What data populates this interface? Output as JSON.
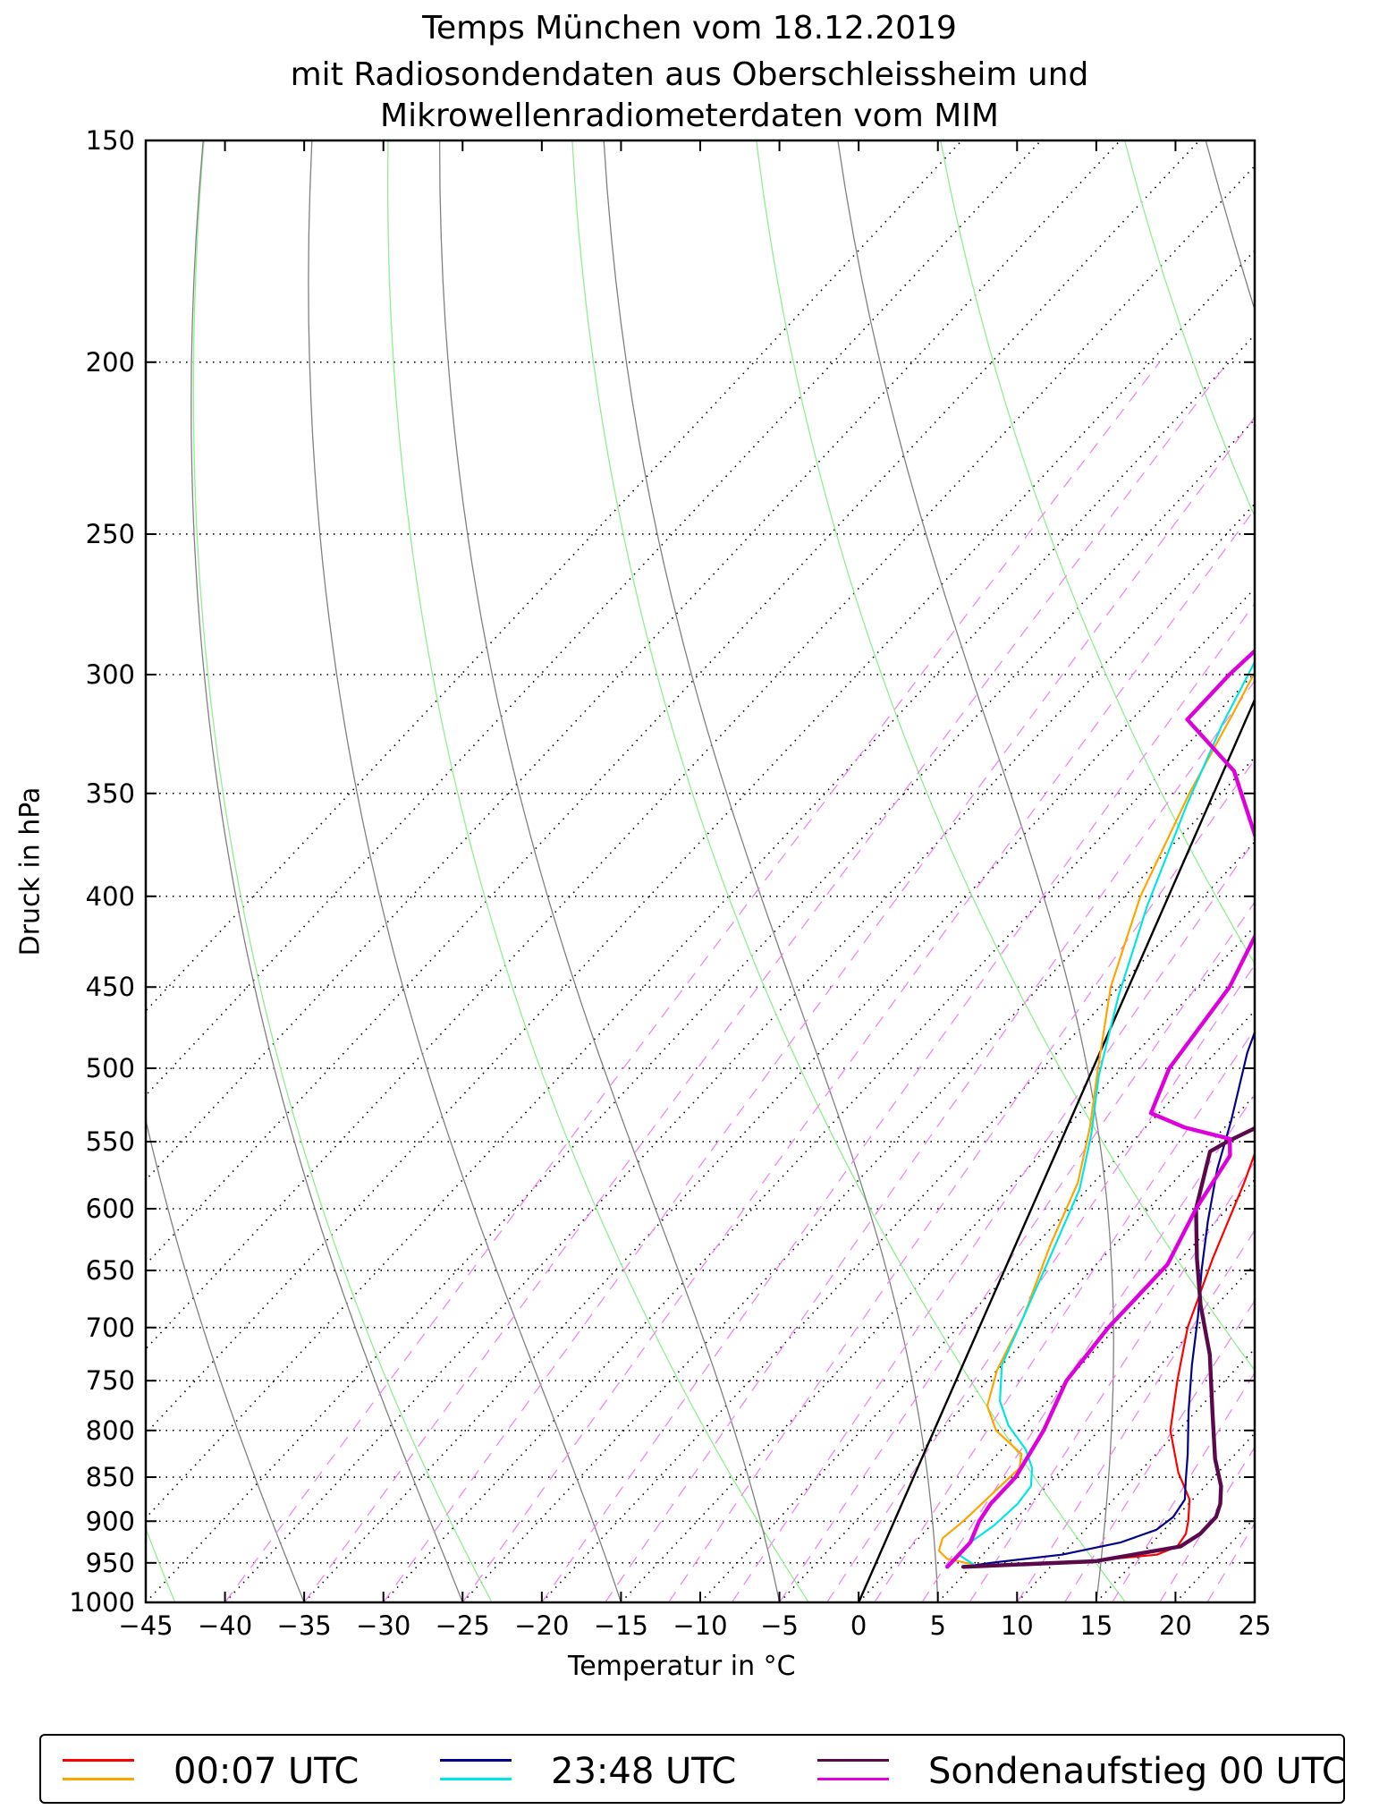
{
  "chart_data": {
    "type": "line",
    "subtype": "skew-T log-p diagram",
    "title_lines": [
      "Temps München vom 18.12.2019",
      "mit Radiosondendaten aus Oberschleissheim und",
      "Mikrowellenradiometerdaten vom MIM"
    ],
    "xlabel": "Temperatur in °C",
    "ylabel": "Druck in hPa",
    "xlim": [
      -45,
      25
    ],
    "ylim": [
      1000,
      150
    ],
    "yscale": "log",
    "skew_degC_per_decade": 105,
    "x_ticks": [
      "−45",
      "−40",
      "−35",
      "−30",
      "−25",
      "−20",
      "−15",
      "−10",
      "−5",
      "0",
      "5",
      "10",
      "15",
      "20",
      "25"
    ],
    "x_tick_values": [
      -45,
      -40,
      -35,
      -30,
      -25,
      -20,
      -15,
      -10,
      -5,
      0,
      5,
      10,
      15,
      20,
      25
    ],
    "y_ticks": [
      "150",
      "200",
      "250",
      "300",
      "350",
      "400",
      "450",
      "500",
      "550",
      "600",
      "650",
      "700",
      "750",
      "800",
      "850",
      "900",
      "950",
      "1000"
    ],
    "y_tick_values": [
      150,
      200,
      250,
      300,
      350,
      400,
      450,
      500,
      550,
      600,
      650,
      700,
      750,
      800,
      850,
      900,
      950,
      1000
    ],
    "isotherm_start_values_degC": [
      -80,
      -75,
      -70,
      -65,
      -60,
      -55,
      -50,
      -45,
      -40,
      -35,
      -30,
      -25,
      -20,
      -15,
      -10,
      -5,
      0,
      5,
      10,
      15,
      20,
      25
    ],
    "dry_adiabat_theta_K": [
      230,
      250,
      270,
      290,
      310,
      330,
      350,
      370,
      390,
      410,
      430,
      450,
      470,
      490,
      510
    ],
    "moist_adiabat_T1000_degC": [
      -35,
      -25,
      -15,
      -5,
      5,
      15,
      25
    ],
    "mixing_ratio_start_degC": [
      -40,
      -35,
      -30,
      -25,
      -20,
      -16,
      -12,
      -8,
      -5,
      -2,
      1,
      4,
      7,
      10,
      13,
      16,
      19,
      22,
      25
    ],
    "reference_line": {
      "name": "0°C reference",
      "start": [
        0,
        1000
      ],
      "end": [
        25,
        310
      ]
    },
    "series": [
      {
        "name": "00:07 UTC Temperatur",
        "color": "#ff0000",
        "width": 2,
        "points": [
          [
            -26.0,
            245
          ],
          [
            -25.5,
            260
          ],
          [
            -24.0,
            280
          ],
          [
            -21.5,
            305
          ],
          [
            -18.0,
            335
          ],
          [
            -15.0,
            365
          ],
          [
            -12.0,
            400
          ],
          [
            -8.0,
            450
          ],
          [
            -5.0,
            500
          ],
          [
            -2.5,
            540
          ],
          [
            -0.5,
            580
          ],
          [
            2.0,
            640
          ],
          [
            4.5,
            700
          ],
          [
            7.0,
            750
          ],
          [
            9.5,
            800
          ],
          [
            12.5,
            845
          ],
          [
            14.8,
            875
          ],
          [
            16.0,
            900
          ],
          [
            16.6,
            915
          ],
          [
            16.8,
            930
          ],
          [
            16.0,
            940
          ],
          [
            12.0,
            948
          ],
          [
            8.0,
            952
          ],
          [
            4.5,
            955
          ]
        ]
      },
      {
        "name": "00:07 UTC Taupunkt",
        "color": "#ffa500",
        "width": 2,
        "points": [
          [
            -33.5,
            242
          ],
          [
            -33.0,
            255
          ],
          [
            -31.0,
            285
          ],
          [
            -29.0,
            315
          ],
          [
            -27.0,
            350
          ],
          [
            -24.0,
            400
          ],
          [
            -20.5,
            450
          ],
          [
            -16.5,
            500
          ],
          [
            -13.5,
            540
          ],
          [
            -11.0,
            580
          ],
          [
            -9.0,
            630
          ],
          [
            -6.5,
            690
          ],
          [
            -5.0,
            740
          ],
          [
            -3.5,
            775
          ],
          [
            -1.5,
            800
          ],
          [
            1.5,
            825
          ],
          [
            2.2,
            840
          ],
          [
            2.0,
            870
          ],
          [
            1.8,
            900
          ],
          [
            1.5,
            920
          ],
          [
            2.0,
            935
          ],
          [
            3.0,
            945
          ],
          [
            5.0,
            952
          ]
        ]
      },
      {
        "name": "23:48 UTC Temperatur",
        "color": "#00008b",
        "width": 2,
        "points": [
          [
            -26.5,
            242
          ],
          [
            -25.0,
            262
          ],
          [
            -22.5,
            295
          ],
          [
            -20.0,
            325
          ],
          [
            -17.0,
            360
          ],
          [
            -14.0,
            395
          ],
          [
            -11.0,
            440
          ],
          [
            -8.0,
            490
          ],
          [
            -5.0,
            535
          ],
          [
            -3.0,
            570
          ],
          [
            -0.5,
            610
          ],
          [
            2.0,
            650
          ],
          [
            4.5,
            690
          ],
          [
            7.0,
            735
          ],
          [
            9.5,
            780
          ],
          [
            12.0,
            825
          ],
          [
            13.5,
            855
          ],
          [
            14.5,
            875
          ],
          [
            14.8,
            895
          ],
          [
            14.5,
            910
          ],
          [
            13.0,
            925
          ],
          [
            10.0,
            940
          ],
          [
            6.0,
            950
          ],
          [
            4.5,
            955
          ]
        ]
      },
      {
        "name": "23:48 UTC Taupunkt",
        "color": "#00e5e5",
        "width": 2,
        "points": [
          [
            -34.0,
            242
          ],
          [
            -33.0,
            260
          ],
          [
            -31.0,
            290
          ],
          [
            -29.0,
            320
          ],
          [
            -26.5,
            355
          ],
          [
            -23.0,
            405
          ],
          [
            -19.5,
            455
          ],
          [
            -16.0,
            505
          ],
          [
            -13.0,
            545
          ],
          [
            -10.5,
            585
          ],
          [
            -8.5,
            635
          ],
          [
            -6.5,
            690
          ],
          [
            -5.0,
            735
          ],
          [
            -3.0,
            770
          ],
          [
            -1.0,
            795
          ],
          [
            1.5,
            820
          ],
          [
            3.0,
            840
          ],
          [
            4.0,
            860
          ],
          [
            4.2,
            880
          ],
          [
            4.0,
            905
          ],
          [
            3.5,
            925
          ],
          [
            3.5,
            940
          ],
          [
            5.0,
            952
          ]
        ]
      },
      {
        "name": "Sondenaufstieg 00 UTC Temperatur",
        "color": "#5a0a4a",
        "width": 4,
        "points": [
          [
            -15.0,
            150
          ],
          [
            -13.5,
            160
          ],
          [
            -13.5,
            172
          ],
          [
            -12.5,
            190
          ],
          [
            -12.0,
            204
          ],
          [
            -11.5,
            218
          ],
          [
            -10.5,
            235
          ],
          [
            -9.0,
            255
          ],
          [
            -8.0,
            275
          ],
          [
            -6.0,
            300
          ],
          [
            -4.0,
            330
          ],
          [
            -3.0,
            350
          ],
          [
            -1.5,
            385
          ],
          [
            -0.5,
            405
          ],
          [
            -1.0,
            430
          ],
          [
            -1.0,
            460
          ],
          [
            -2.0,
            490
          ],
          [
            -2.0,
            525
          ],
          [
            -2.5,
            530
          ],
          [
            -3.0,
            540
          ],
          [
            -4.0,
            550
          ],
          [
            -4.5,
            557
          ],
          [
            -2.0,
            600
          ],
          [
            1.0,
            640
          ],
          [
            4.0,
            680
          ],
          [
            7.5,
            725
          ],
          [
            11.0,
            780
          ],
          [
            14.0,
            830
          ],
          [
            16.0,
            860
          ],
          [
            17.0,
            880
          ],
          [
            17.5,
            895
          ],
          [
            17.5,
            915
          ],
          [
            17.0,
            930
          ],
          [
            12.5,
            948
          ],
          [
            4.5,
            955
          ]
        ]
      },
      {
        "name": "Sondenaufstieg 00 UTC Taupunkt",
        "color": "#dd00dd",
        "width": 4,
        "points": [
          [
            -45.0,
            172
          ],
          [
            -36.5,
            172
          ],
          [
            -41.0,
            200
          ],
          [
            -39.0,
            210
          ],
          [
            -38.0,
            218
          ],
          [
            -39.0,
            226
          ],
          [
            -34.0,
            250
          ],
          [
            -31.0,
            278
          ],
          [
            -31.5,
            300
          ],
          [
            -31.5,
            318
          ],
          [
            -25.5,
            340
          ],
          [
            -15.5,
            400
          ],
          [
            -13.0,
            450
          ],
          [
            -12.0,
            500
          ],
          [
            -10.5,
            530
          ],
          [
            -7.5,
            540
          ],
          [
            -4.0,
            548
          ],
          [
            -3.0,
            560
          ],
          [
            -2.0,
            600
          ],
          [
            -0.5,
            645
          ],
          [
            -0.5,
            675
          ],
          [
            -0.5,
            700
          ],
          [
            0,
            750
          ],
          [
            1.5,
            800
          ],
          [
            2.5,
            850
          ],
          [
            2.5,
            880
          ],
          [
            2.8,
            900
          ],
          [
            3.5,
            925
          ],
          [
            3.5,
            940
          ],
          [
            3.5,
            955
          ]
        ]
      }
    ],
    "legend": [
      {
        "label": "00:07 UTC",
        "colors": [
          "#ff0000",
          "#ffa500"
        ]
      },
      {
        "label": "23:48 UTC",
        "colors": [
          "#00008b",
          "#00e5e5"
        ]
      },
      {
        "label": "Sondenaufstieg 00 UTC",
        "colors": [
          "#5a0a4a",
          "#dd00dd"
        ]
      }
    ],
    "legend_placement": "bottom"
  },
  "colors": {
    "isotherm": "#000000",
    "dry_adiabat": "#90ee90",
    "moist_adiabat": "#808080",
    "mixing_ratio": "#ee88ee",
    "reference_line": "#000000"
  }
}
